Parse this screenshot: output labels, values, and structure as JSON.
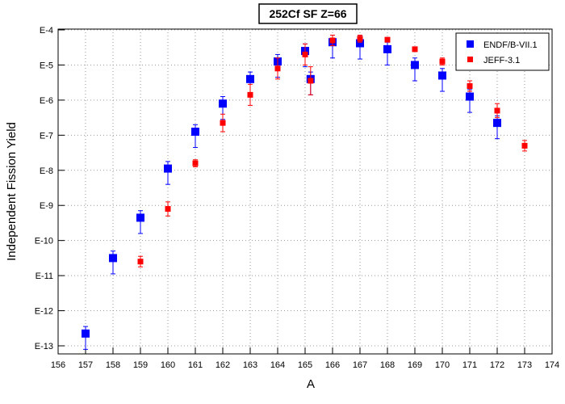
{
  "chart_data": {
    "type": "scatter",
    "title": "252Cf SF Z=66",
    "xlabel": "A",
    "ylabel": "Independent Fission Yield",
    "xlim": [
      156,
      174
    ],
    "ylim_exponent": [
      -13,
      -4
    ],
    "y_scale": "log",
    "grid": true,
    "legend_position": "top-right",
    "x_ticks": [
      "156",
      "157",
      "158",
      "159",
      "160",
      "161",
      "162",
      "163",
      "164",
      "165",
      "166",
      "167",
      "168",
      "169",
      "170",
      "171",
      "172",
      "173",
      "174"
    ],
    "y_ticks": [
      "E-4",
      "E-5",
      "E-6",
      "E-7",
      "E-8",
      "E-9",
      "E-10",
      "E-11",
      "E-12",
      "E-13"
    ],
    "y_tick_exponents": [
      -4,
      -5,
      -6,
      -7,
      -8,
      -9,
      -10,
      -11,
      -12,
      -13
    ],
    "series": [
      {
        "name": "ENDF/B-VII.1",
        "color": "#0000ff",
        "marker": "square-large",
        "points": [
          {
            "x": 157,
            "log10y": -12.65,
            "err_lo": 0.45,
            "err_hi": 0.2
          },
          {
            "x": 158,
            "log10y": -10.5,
            "err_lo": 0.45,
            "err_hi": 0.2
          },
          {
            "x": 159,
            "log10y": -9.35,
            "err_lo": 0.45,
            "err_hi": 0.2
          },
          {
            "x": 160,
            "log10y": -7.95,
            "err_lo": 0.45,
            "err_hi": 0.2
          },
          {
            "x": 161,
            "log10y": -6.9,
            "err_lo": 0.45,
            "err_hi": 0.2
          },
          {
            "x": 162,
            "log10y": -6.1,
            "err_lo": 0.45,
            "err_hi": 0.2
          },
          {
            "x": 163,
            "log10y": -5.4,
            "err_lo": 0.45,
            "err_hi": 0.2
          },
          {
            "x": 164,
            "log10y": -4.9,
            "err_lo": 0.45,
            "err_hi": 0.2
          },
          {
            "x": 165,
            "log10y": -4.6,
            "err_lo": 0.45,
            "err_hi": 0.2
          },
          {
            "x": 165.2,
            "log10y": -5.4,
            "err_lo": 0.45,
            "err_hi": 0.2
          },
          {
            "x": 166,
            "log10y": -4.35,
            "err_lo": 0.45,
            "err_hi": 0.2
          },
          {
            "x": 167,
            "log10y": -4.38,
            "err_lo": 0.45,
            "err_hi": 0.2
          },
          {
            "x": 168,
            "log10y": -4.55,
            "err_lo": 0.45,
            "err_hi": 0.2
          },
          {
            "x": 169,
            "log10y": -5.0,
            "err_lo": 0.45,
            "err_hi": 0.2
          },
          {
            "x": 170,
            "log10y": -5.3,
            "err_lo": 0.45,
            "err_hi": 0.2
          },
          {
            "x": 171,
            "log10y": -5.9,
            "err_lo": 0.45,
            "err_hi": 0.2
          },
          {
            "x": 172,
            "log10y": -6.65,
            "err_lo": 0.45,
            "err_hi": 0.2
          }
        ]
      },
      {
        "name": "JEFF-3.1",
        "color": "#ff0000",
        "marker": "square-small",
        "points": [
          {
            "x": 159,
            "log10y": -10.6,
            "err_lo": 0.15,
            "err_hi": 0.15
          },
          {
            "x": 160,
            "log10y": -9.1,
            "err_lo": 0.2,
            "err_hi": 0.2
          },
          {
            "x": 161,
            "log10y": -7.8,
            "err_lo": 0.1,
            "err_hi": 0.1
          },
          {
            "x": 162,
            "log10y": -6.65,
            "err_lo": 0.25,
            "err_hi": 0.25
          },
          {
            "x": 163,
            "log10y": -5.85,
            "err_lo": 0.3,
            "err_hi": 0.3
          },
          {
            "x": 164,
            "log10y": -5.1,
            "err_lo": 0.3,
            "err_hi": 0.3
          },
          {
            "x": 165,
            "log10y": -4.7,
            "err_lo": 0.3,
            "err_hi": 0.3
          },
          {
            "x": 165.2,
            "log10y": -5.45,
            "err_lo": 0.4,
            "err_hi": 0.4
          },
          {
            "x": 166,
            "log10y": -4.3,
            "err_lo": 0.15,
            "err_hi": 0.15
          },
          {
            "x": 167,
            "log10y": -4.25,
            "err_lo": 0.1,
            "err_hi": 0.1
          },
          {
            "x": 168,
            "log10y": -4.28,
            "err_lo": 0.0,
            "err_hi": 0.0
          },
          {
            "x": 169,
            "log10y": -4.55,
            "err_lo": 0.0,
            "err_hi": 0.0
          },
          {
            "x": 170,
            "log10y": -4.9,
            "err_lo": 0.1,
            "err_hi": 0.1
          },
          {
            "x": 171,
            "log10y": -5.6,
            "err_lo": 0.15,
            "err_hi": 0.15
          },
          {
            "x": 172,
            "log10y": -6.3,
            "err_lo": 0.2,
            "err_hi": 0.2
          },
          {
            "x": 173,
            "log10y": -7.3,
            "err_lo": 0.15,
            "err_hi": 0.15
          }
        ]
      }
    ]
  }
}
